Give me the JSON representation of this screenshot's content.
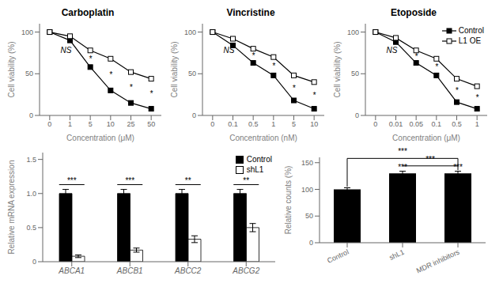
{
  "chart_data": [
    {
      "type": "line",
      "title": "Carboplatin",
      "xlabel": "Concentration (μM)",
      "ylabel": "Cell viability (%)",
      "categories": [
        "0",
        "1",
        "5",
        "10",
        "25",
        "50"
      ],
      "series": [
        {
          "name": "Control",
          "color": "#000000",
          "marker": "filled_square",
          "values": [
            100,
            90,
            58,
            30,
            15,
            8
          ]
        },
        {
          "name": "L1 OE",
          "color": "#000000",
          "marker": "open_square",
          "values": [
            100,
            95,
            78,
            68,
            52,
            44
          ]
        }
      ],
      "ylim": [
        0,
        110
      ],
      "yticks": [
        0,
        50,
        100
      ],
      "grid": false,
      "annotations": [
        {
          "text": "*",
          "x": 2,
          "y": 68
        },
        {
          "text": "*",
          "x": 3,
          "y": 49
        },
        {
          "text": "*",
          "x": 4,
          "y": 33.5
        },
        {
          "text": "*",
          "x": 5,
          "y": 26
        },
        {
          "text": "NS",
          "x": 0.8,
          "y": 78
        }
      ]
    },
    {
      "type": "line",
      "title": "Vincristine",
      "xlabel": "Concentration (nM)",
      "ylabel": "Cell viability (%)",
      "categories": [
        "0",
        "0.1",
        "0.5",
        "1",
        "5",
        "10"
      ],
      "series": [
        {
          "name": "Control",
          "color": "#000000",
          "marker": "filled_square",
          "values": [
            100,
            84,
            63,
            48,
            18,
            8
          ]
        },
        {
          "name": "L1 OE",
          "color": "#000000",
          "marker": "open_square",
          "values": [
            100,
            92,
            80,
            70,
            48,
            40
          ]
        }
      ],
      "ylim": [
        0,
        110
      ],
      "yticks": [
        0,
        50,
        100
      ],
      "grid": false,
      "annotations": [
        {
          "text": "*",
          "x": 2,
          "y": 71.5
        },
        {
          "text": "*",
          "x": 3,
          "y": 59
        },
        {
          "text": "*",
          "x": 4,
          "y": 33
        },
        {
          "text": "*",
          "x": 5,
          "y": 24
        },
        {
          "text": "NS",
          "x": 0.8,
          "y": 78
        }
      ]
    },
    {
      "type": "line",
      "title": "Etoposide",
      "xlabel": "Concentration (μM)",
      "ylabel": "Cell viability (%)",
      "categories": [
        "0",
        "0.01",
        "0.05",
        "0.1",
        "0.5",
        "1"
      ],
      "series": [
        {
          "name": "Control",
          "color": "#000000",
          "marker": "filled_square",
          "values": [
            100,
            88,
            63,
            48,
            16,
            8
          ]
        },
        {
          "name": "L1 OE",
          "color": "#000000",
          "marker": "open_square",
          "values": [
            100,
            93,
            78,
            68,
            44,
            35
          ]
        }
      ],
      "ylim": [
        0,
        110
      ],
      "yticks": [
        0,
        50,
        100
      ],
      "grid": false,
      "legend": "upper right",
      "annotations": [
        {
          "text": "*",
          "x": 2,
          "y": 70.5
        },
        {
          "text": "*",
          "x": 3,
          "y": 58
        },
        {
          "text": "*",
          "x": 4,
          "y": 30
        },
        {
          "text": "*",
          "x": 5,
          "y": 21.5
        },
        {
          "text": "NS",
          "x": 0.8,
          "y": 78
        }
      ]
    },
    {
      "type": "bar",
      "ylabel": "Relative mRNA expression",
      "categories": [
        "ABCA1",
        "ABCB1",
        "ABCC2",
        "ABCG2"
      ],
      "series": [
        {
          "name": "Control",
          "color": "#000000",
          "values": [
            1.0,
            1.0,
            1.0,
            1.0
          ],
          "errors": [
            0.06,
            0.06,
            0.06,
            0.06
          ]
        },
        {
          "name": "shL1",
          "color": "#ffffff",
          "values": [
            0.08,
            0.17,
            0.33,
            0.5
          ],
          "errors": [
            0.02,
            0.03,
            0.05,
            0.06
          ]
        }
      ],
      "ylim": [
        0,
        1.6
      ],
      "yticks": [
        0,
        0.5,
        {
          "value": 1,
          "label": "1.0"
        },
        1.5
      ],
      "grid": false,
      "legend": "upper right",
      "annotations": [
        {
          "text": "***",
          "x": "ABCA1",
          "y": 1.13
        },
        {
          "text": "***",
          "x": "ABCB1",
          "y": 1.13
        },
        {
          "text": "**",
          "x": "ABCC2",
          "y": 1.13
        },
        {
          "text": "**",
          "x": "ABCG2",
          "y": 1.13
        }
      ]
    },
    {
      "type": "bar",
      "ylabel": "Relative counts (%)",
      "categories": [
        "Control",
        "shL1",
        "MDR inhibitors"
      ],
      "values": [
        100,
        130,
        130
      ],
      "errors": [
        3,
        4,
        4
      ],
      "color": "#000000",
      "ylim": [
        0,
        160
      ],
      "yticks": [
        0,
        50,
        100,
        150
      ],
      "grid": false,
      "annotations": [
        {
          "text": "***",
          "x": "shL1",
          "y": 137
        },
        {
          "text": "***",
          "x": "MDR inhibitors",
          "y": 137
        },
        {
          "text": "***",
          "x": [
            "shL1",
            "MDR inhibitors"
          ],
          "y": 144
        },
        {
          "text": "***",
          "x": [
            "Control",
            "MDR inhibitors"
          ],
          "y": 158,
          "from_y": [
            105,
            136
          ]
        }
      ]
    }
  ]
}
